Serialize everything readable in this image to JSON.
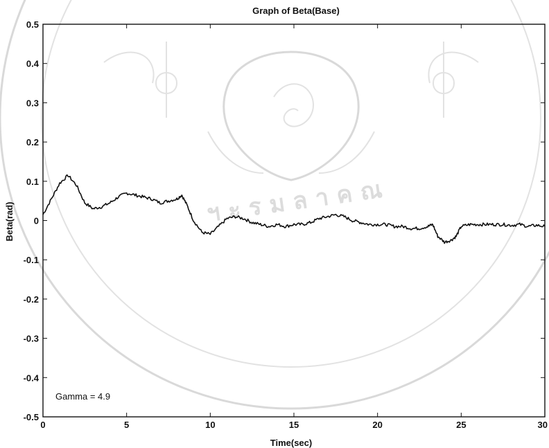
{
  "chart_data": {
    "type": "line",
    "title": "Graph of Beta(Base)",
    "xlabel": "Time(sec)",
    "ylabel": "Beta(rad)",
    "xlim": [
      0,
      30
    ],
    "ylim": [
      -0.5,
      0.5
    ],
    "xticks": [
      0,
      5,
      10,
      15,
      20,
      25,
      30
    ],
    "yticks": [
      0.5,
      0.4,
      0.3,
      0.2,
      0.1,
      0,
      -0.1,
      -0.2,
      -0.3,
      -0.4,
      -0.5
    ],
    "xtick_labels": [
      "0",
      "5",
      "10",
      "15",
      "20",
      "25",
      "30"
    ],
    "ytick_labels": [
      "0.5",
      "0.4",
      "0.3",
      "0.2",
      "0.1",
      "0",
      "-0.1",
      "-0.2",
      "-0.3",
      "-0.4",
      "-0.5"
    ],
    "grid": false,
    "annotation": "Gamma = 4.9",
    "series": [
      {
        "color": "#111111",
        "x": [
          0,
          0.5,
          1.0,
          1.5,
          2.0,
          2.5,
          3.0,
          3.5,
          4.0,
          4.5,
          5.0,
          5.5,
          6.0,
          6.5,
          7.0,
          7.5,
          8.0,
          8.3,
          8.6,
          9.0,
          9.5,
          10.0,
          10.5,
          11.0,
          11.5,
          12.0,
          12.5,
          13.0,
          13.5,
          14.0,
          14.5,
          15.0,
          15.5,
          16.0,
          16.5,
          17.0,
          17.5,
          18.0,
          18.5,
          19.0,
          19.5,
          20.0,
          20.5,
          21.0,
          21.5,
          22.0,
          22.5,
          23.0,
          23.3,
          23.6,
          24.0,
          24.4,
          24.7,
          25.0,
          25.5,
          26.0,
          26.5,
          27.0,
          27.5,
          28.0,
          28.5,
          29.0,
          29.5,
          30.0
        ],
        "y": [
          0.015,
          0.055,
          0.095,
          0.115,
          0.09,
          0.045,
          0.03,
          0.035,
          0.045,
          0.06,
          0.07,
          0.065,
          0.06,
          0.055,
          0.045,
          0.05,
          0.055,
          0.065,
          0.04,
          0.0,
          -0.03,
          -0.035,
          -0.015,
          0.005,
          0.01,
          0.005,
          -0.005,
          -0.01,
          -0.015,
          -0.01,
          -0.015,
          -0.01,
          -0.01,
          -0.005,
          0.005,
          0.01,
          0.015,
          0.01,
          0.0,
          -0.005,
          -0.01,
          -0.01,
          -0.01,
          -0.015,
          -0.015,
          -0.02,
          -0.02,
          -0.015,
          -0.01,
          -0.04,
          -0.055,
          -0.05,
          -0.04,
          -0.015,
          -0.01,
          -0.01,
          -0.01,
          -0.01,
          -0.01,
          -0.012,
          -0.01,
          -0.015,
          -0.012,
          -0.015
        ]
      }
    ]
  }
}
